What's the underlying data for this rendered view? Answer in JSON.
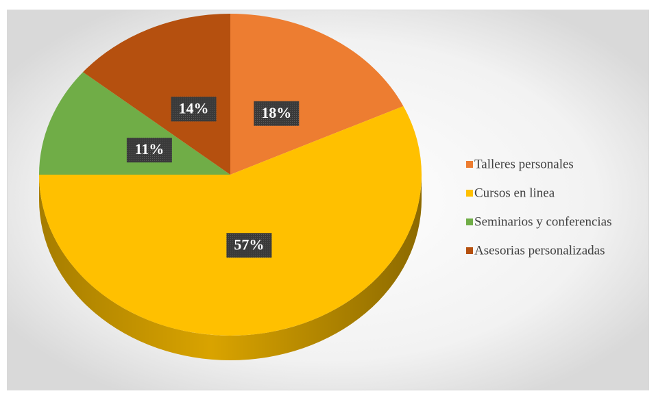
{
  "chart_data": {
    "type": "pie",
    "categories": [
      "Talleres personales",
      "Cursos en linea",
      "Seminarios y conferencias",
      "Asesorias personalizadas"
    ],
    "values": [
      18,
      57,
      11,
      14
    ],
    "value_labels": [
      "18%",
      "57%",
      "11%",
      "14%"
    ],
    "colors": [
      "#ed7d31",
      "#ffc000",
      "#70ad47",
      "#b5500f"
    ],
    "legend": "right"
  }
}
